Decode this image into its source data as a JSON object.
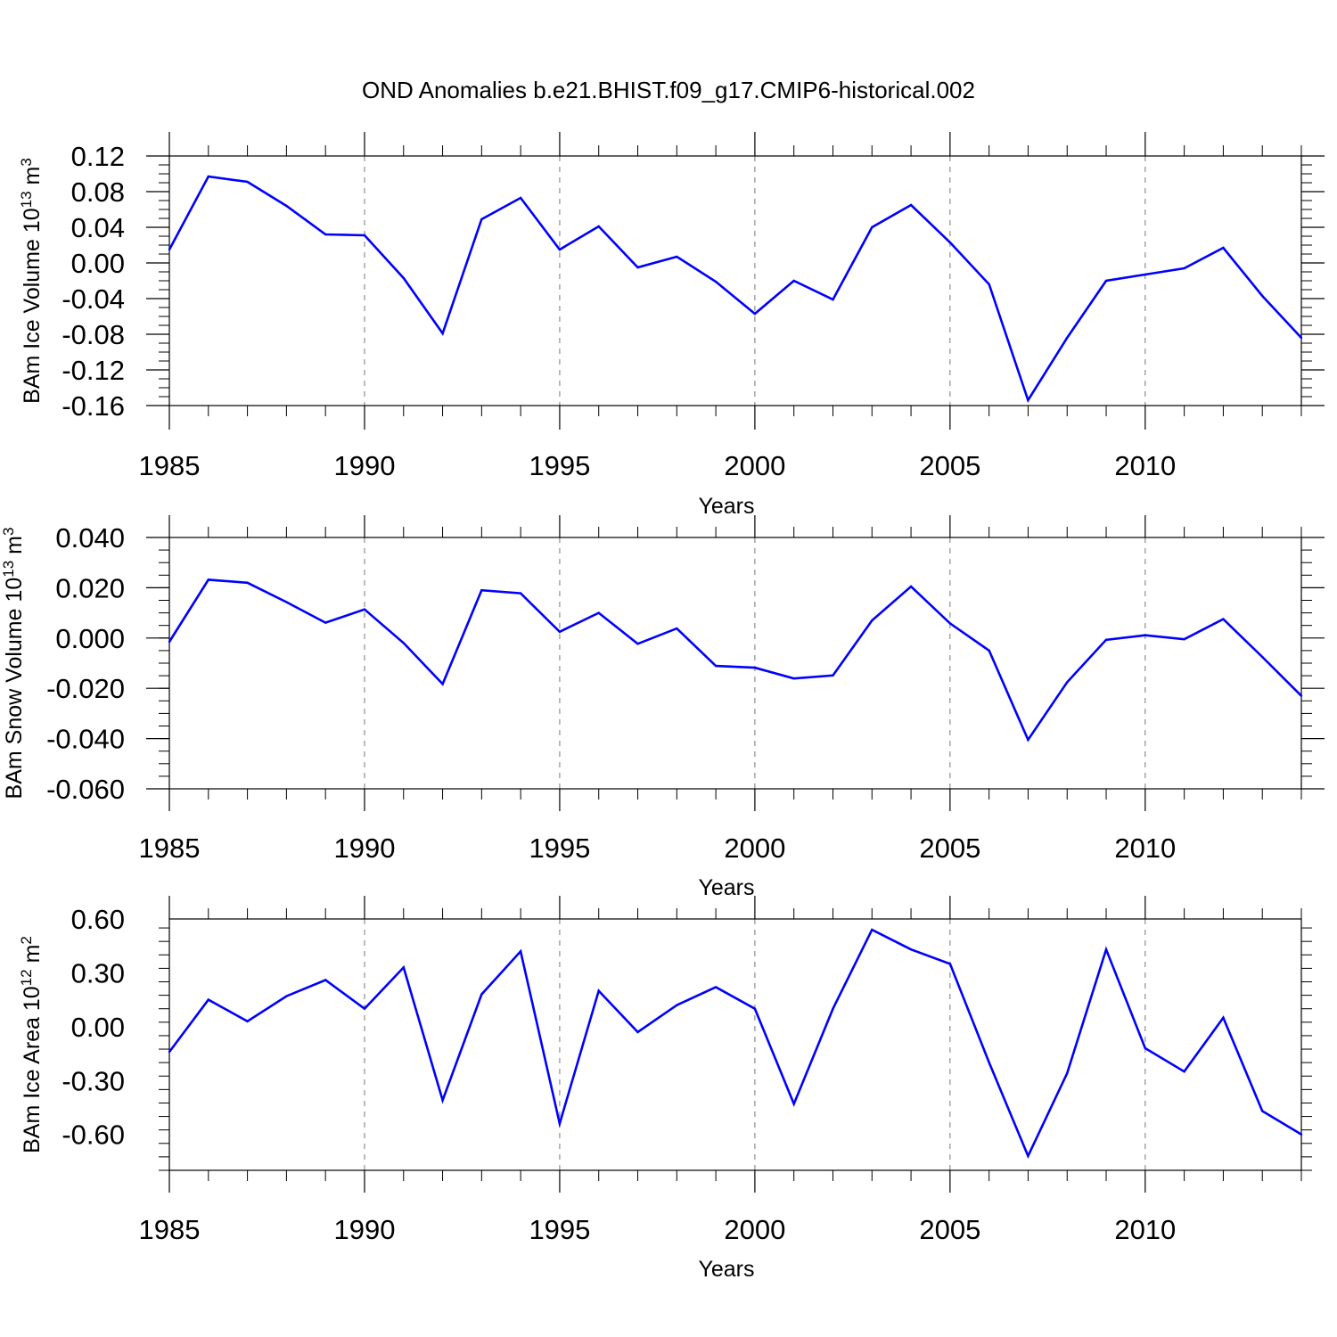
{
  "title": "OND Anomalies b.e21.BHIST.f09_g17.CMIP6-historical.002",
  "colors": {
    "line": "#0000ff",
    "axis": "#000000",
    "grid": "#777777"
  },
  "chart_data": [
    {
      "type": "line",
      "xlabel": "Years",
      "ylabel_main": "BAm Ice Volume 10",
      "ylabel_sup1": "13",
      "ylabel_mid": " m",
      "ylabel_sup2": "3",
      "xlim": [
        1985,
        2014
      ],
      "ylim": [
        -0.16,
        0.12
      ],
      "x_ticks": [
        1985,
        1990,
        1995,
        2000,
        2005,
        2010
      ],
      "y_ticks": [
        "0.12",
        "0.08",
        "0.04",
        "0.00",
        "-0.04",
        "-0.08",
        "-0.12",
        "-0.16"
      ],
      "y_tick_values": [
        0.12,
        0.08,
        0.04,
        0.0,
        -0.04,
        -0.08,
        -0.12,
        -0.16
      ],
      "vgrid": [
        1990,
        1995,
        2000,
        2005,
        2010
      ],
      "series": [
        {
          "x": [
            1985,
            1986,
            1987,
            1988,
            1989,
            1990,
            1991,
            1992,
            1993,
            1994,
            1995,
            1996,
            1997,
            1998,
            1999,
            2000,
            2001,
            2002,
            2003,
            2004,
            2005,
            2006,
            2007,
            2008,
            2009,
            2010,
            2011,
            2012,
            2013,
            2014
          ],
          "values": [
            0.015,
            0.097,
            0.091,
            0.064,
            0.032,
            0.031,
            -0.017,
            -0.079,
            0.049,
            0.073,
            0.015,
            0.041,
            -0.005,
            0.007,
            -0.021,
            -0.057,
            -0.02,
            -0.041,
            0.04,
            0.065,
            0.023,
            -0.024,
            -0.154,
            -0.084,
            -0.02,
            -0.013,
            -0.006,
            0.017,
            -0.037,
            -0.084
          ]
        }
      ]
    },
    {
      "type": "line",
      "xlabel": "Years",
      "ylabel_main": "BAm Snow Volume 10",
      "ylabel_sup1": "13",
      "ylabel_mid": " m",
      "ylabel_sup2": "3",
      "xlim": [
        1985,
        2014
      ],
      "ylim": [
        -0.06,
        0.04
      ],
      "x_ticks": [
        1985,
        1990,
        1995,
        2000,
        2005,
        2010
      ],
      "y_ticks": [
        "0.040",
        "0.020",
        "0.000",
        "-0.020",
        "-0.040",
        "-0.060"
      ],
      "y_tick_values": [
        0.04,
        0.02,
        0.0,
        -0.02,
        -0.04,
        -0.06
      ],
      "vgrid": [
        1990,
        1995,
        2000,
        2005,
        2010
      ],
      "series": [
        {
          "x": [
            1985,
            1986,
            1987,
            1988,
            1989,
            1990,
            1991,
            1992,
            1993,
            1994,
            1995,
            1996,
            1997,
            1998,
            1999,
            2000,
            2001,
            2002,
            2003,
            2004,
            2005,
            2006,
            2007,
            2008,
            2009,
            2010,
            2011,
            2012,
            2013,
            2014
          ],
          "values": [
            -0.0015,
            0.0232,
            0.022,
            0.0143,
            0.0061,
            0.0114,
            -0.002,
            -0.0183,
            0.019,
            0.0178,
            0.0025,
            0.01,
            -0.0023,
            0.0038,
            -0.0111,
            -0.0118,
            -0.0161,
            -0.0149,
            0.007,
            0.0205,
            0.0058,
            -0.005,
            -0.0405,
            -0.0176,
            -0.0007,
            0.0011,
            -0.0005,
            0.0075,
            -0.0075,
            -0.023
          ]
        }
      ]
    },
    {
      "type": "line",
      "xlabel": "Years",
      "ylabel_main": "BAm Ice Area 10",
      "ylabel_sup1": "12",
      "ylabel_mid": " m",
      "ylabel_sup2": "2",
      "xlim": [
        1985,
        2014
      ],
      "ylim": [
        -0.8,
        0.6
      ],
      "x_ticks": [
        1985,
        1990,
        1995,
        2000,
        2005,
        2010
      ],
      "y_ticks": [
        "0.60",
        "0.30",
        "0.00",
        "-0.30",
        "-0.60"
      ],
      "y_tick_values": [
        0.6,
        0.3,
        0.0,
        -0.3,
        -0.6
      ],
      "vgrid": [
        1990,
        1995,
        2000,
        2005,
        2010
      ],
      "series": [
        {
          "x": [
            1985,
            1986,
            1987,
            1988,
            1989,
            1990,
            1991,
            1992,
            1993,
            1994,
            1995,
            1996,
            1997,
            1998,
            1999,
            2000,
            2001,
            2002,
            2003,
            2004,
            2005,
            2006,
            2007,
            2008,
            2009,
            2010,
            2011,
            2012,
            2013,
            2014
          ],
          "values": [
            -0.14,
            0.15,
            0.03,
            0.17,
            0.26,
            0.1,
            0.33,
            -0.41,
            0.18,
            0.42,
            -0.54,
            0.2,
            -0.03,
            0.12,
            0.22,
            0.1,
            -0.43,
            0.1,
            0.54,
            0.43,
            0.35,
            -0.2,
            -0.72,
            -0.26,
            0.43,
            -0.12,
            -0.25,
            0.05,
            -0.47,
            -0.6
          ]
        }
      ]
    }
  ]
}
